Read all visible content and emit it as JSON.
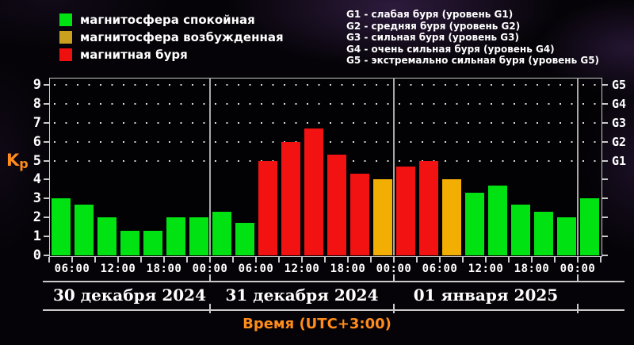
{
  "legend": {
    "items": [
      {
        "label": "магнитосфера спокойная",
        "color": "#00e211"
      },
      {
        "label": "магнитосфера возбужденная",
        "color": "#c9a11f"
      },
      {
        "label": "магнитная буря",
        "color": "#ee0f0f"
      }
    ]
  },
  "storm_levels": {
    "lines": [
      "G1 - слабая буря (уровень G1)",
      "G2 - средняя буря (уровень G2)",
      "G3 - сильная буря (уровень G3)",
      "G4 - очень сильная буря (уровень G4)",
      "G5 - экстремально сильная буря (уровень G5)"
    ]
  },
  "chart_data": {
    "type": "bar",
    "ylabel": "Kp",
    "xlabel": "Время (UTC+3:00)",
    "ylim": [
      0,
      9
    ],
    "y_ticks": [
      0,
      1,
      2,
      3,
      4,
      5,
      6,
      7,
      8,
      9
    ],
    "grid_levels": [
      5,
      6,
      7,
      8,
      9
    ],
    "right_axis_labels": [
      {
        "kp": 9,
        "label": "G5"
      },
      {
        "kp": 8,
        "label": "G4"
      },
      {
        "kp": 7,
        "label": "G3"
      },
      {
        "kp": 6,
        "label": "G2"
      },
      {
        "kp": 5,
        "label": "G1"
      }
    ],
    "time_tick_labels": [
      "06:00",
      "12:00",
      "18:00",
      "00:00",
      "06:00",
      "12:00",
      "18:00",
      "00:00",
      "06:00",
      "12:00",
      "18:00",
      "00:00"
    ],
    "status_colors": {
      "quiet": "#00e211",
      "excited": "#f2ae02",
      "storm": "#f21212"
    },
    "bar_interval_hours": 3,
    "days": [
      {
        "label": "30 декабря 2024",
        "bars": [
          {
            "kp": 3.0,
            "status": "quiet"
          },
          {
            "kp": 2.7,
            "status": "quiet"
          },
          {
            "kp": 2.0,
            "status": "quiet"
          },
          {
            "kp": 1.3,
            "status": "quiet"
          },
          {
            "kp": 1.3,
            "status": "quiet"
          },
          {
            "kp": 2.0,
            "status": "quiet"
          },
          {
            "kp": 2.0,
            "status": "quiet"
          }
        ]
      },
      {
        "label": "31 декабря 2024",
        "bars": [
          {
            "kp": 2.3,
            "status": "quiet"
          },
          {
            "kp": 1.7,
            "status": "quiet"
          },
          {
            "kp": 5.0,
            "status": "storm"
          },
          {
            "kp": 6.0,
            "status": "storm"
          },
          {
            "kp": 6.7,
            "status": "storm"
          },
          {
            "kp": 5.3,
            "status": "storm"
          },
          {
            "kp": 4.3,
            "status": "storm"
          },
          {
            "kp": 4.0,
            "status": "excited"
          }
        ]
      },
      {
        "label": "01 января 2025",
        "bars": [
          {
            "kp": 4.7,
            "status": "storm"
          },
          {
            "kp": 5.0,
            "status": "storm"
          },
          {
            "kp": 4.0,
            "status": "excited"
          },
          {
            "kp": 3.3,
            "status": "quiet"
          },
          {
            "kp": 3.7,
            "status": "quiet"
          },
          {
            "kp": 2.7,
            "status": "quiet"
          },
          {
            "kp": 2.3,
            "status": "quiet"
          },
          {
            "kp": 2.0,
            "status": "quiet"
          }
        ]
      },
      {
        "label": "",
        "bars": [
          {
            "kp": 3.0,
            "status": "quiet"
          }
        ]
      }
    ]
  }
}
